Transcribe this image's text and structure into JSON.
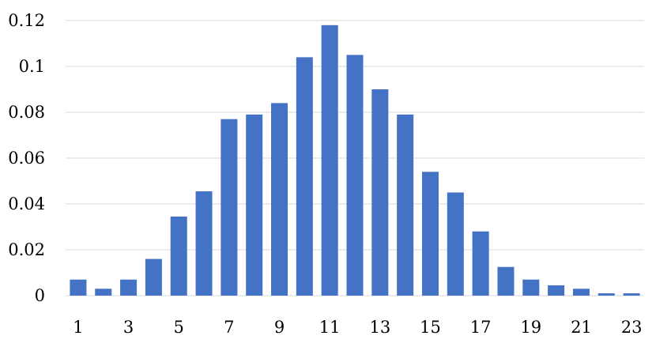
{
  "chart_data": {
    "type": "bar",
    "title": "",
    "xlabel": "",
    "ylabel": "",
    "categories": [
      "1",
      "2",
      "3",
      "4",
      "5",
      "6",
      "7",
      "8",
      "9",
      "10",
      "11",
      "12",
      "13",
      "14",
      "15",
      "16",
      "17",
      "18",
      "19",
      "20",
      "21",
      "22",
      "23"
    ],
    "values": [
      0.007,
      0.003,
      0.007,
      0.016,
      0.0345,
      0.0455,
      0.077,
      0.079,
      0.084,
      0.104,
      0.118,
      0.105,
      0.09,
      0.079,
      0.054,
      0.045,
      0.028,
      0.0125,
      0.007,
      0.0045,
      0.003,
      0.001,
      0.001
    ],
    "x_tick_labels": [
      "1",
      "3",
      "5",
      "7",
      "9",
      "11",
      "13",
      "15",
      "17",
      "19",
      "21",
      "23"
    ],
    "y_tick_labels": [
      "0",
      "0.02",
      "0.04",
      "0.06",
      "0.08",
      "0.1",
      "0.12"
    ],
    "y_ticks": [
      0,
      0.02,
      0.04,
      0.06,
      0.08,
      0.1,
      0.12
    ],
    "ylim": [
      0,
      0.12
    ],
    "grid": true,
    "legend": "none",
    "bar_color": "#4472c4"
  }
}
